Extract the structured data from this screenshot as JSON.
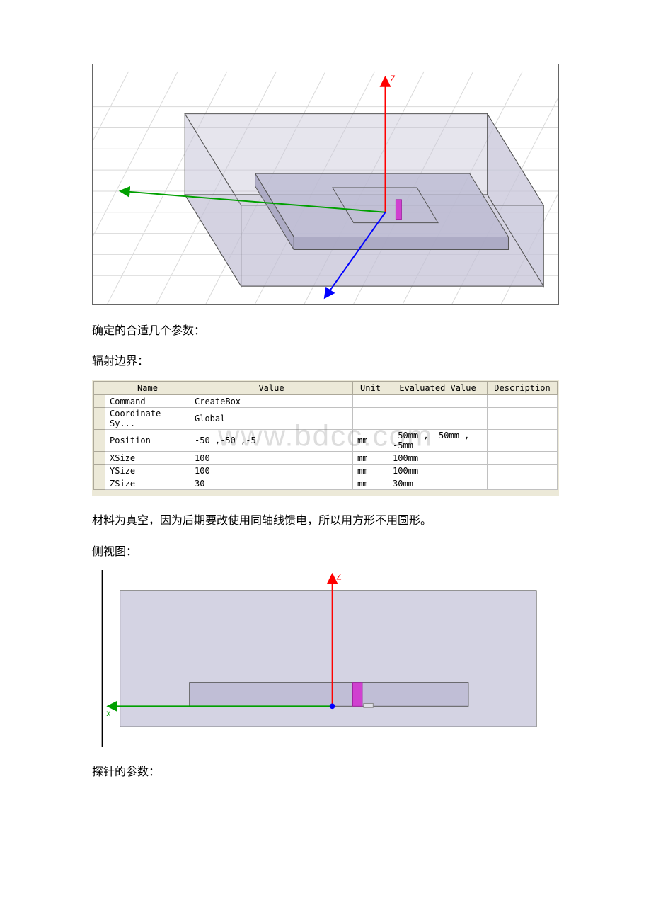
{
  "text": {
    "params_intro": "确定的合适几个参数：",
    "radiation_boundary": "辐射边界：",
    "material_note": "材料为真空，因为后期要改使用同轴线馈电，所以用方形不用圆形。",
    "side_view": "侧视图：",
    "probe_params": "探针的参数：",
    "watermark": "www.bdcc.com"
  },
  "table": {
    "headers": {
      "name": "Name",
      "value": "Value",
      "unit": "Unit",
      "evaluated": "Evaluated Value",
      "description": "Description"
    },
    "rows": [
      {
        "name": "Command",
        "value": "CreateBox",
        "unit": "",
        "evaluated": "",
        "description": ""
      },
      {
        "name": "Coordinate Sy...",
        "value": "Global",
        "unit": "",
        "evaluated": "",
        "description": ""
      },
      {
        "name": "Position",
        "value": "-50 ,-50 ,-5",
        "unit": "mm",
        "evaluated": "-50mm , -50mm , -5mm",
        "description": ""
      },
      {
        "name": "XSize",
        "value": "100",
        "unit": "mm",
        "evaluated": "100mm",
        "description": ""
      },
      {
        "name": "YSize",
        "value": "100",
        "unit": "mm",
        "evaluated": "100mm",
        "description": ""
      },
      {
        "name": "ZSize",
        "value": "30",
        "unit": "mm",
        "evaluated": "30mm",
        "description": ""
      }
    ]
  },
  "figure3d": {
    "type": "diagram",
    "background_color": "#ffffff",
    "grid_color": "#d9d9d9",
    "outer_box_fill": "#c7c5d8",
    "outer_box_opacity": 0.55,
    "inner_slab_fill": "#bcbad2",
    "edge_color": "#555555",
    "z_axis_color": "#ff0000",
    "y_axis_color": "#00a000",
    "x_axis_color": "#0000ff",
    "probe_color": "#d040d0",
    "z_label": "Z",
    "aspect_w": 660,
    "aspect_h": 340
  },
  "figureSide": {
    "type": "diagram",
    "background_color": "#ffffff",
    "box_fill": "#c6c4da",
    "box_opacity": 0.75,
    "slab_fill": "#c0bed6",
    "edge_color": "#555555",
    "z_axis_color": "#ff0000",
    "x_axis_color": "#00a000",
    "origin_dot_color": "#0000ff",
    "probe_color": "#d040d0",
    "z_label": "Z",
    "x_label": "x",
    "left_border_color": "#000000",
    "aspect_w": 660,
    "aspect_h": 250
  }
}
